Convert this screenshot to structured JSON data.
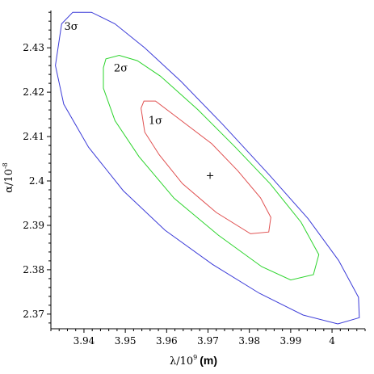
{
  "chart_data": {
    "type": "contour",
    "xlabel_symbol": "λ/10",
    "xlabel_exponent": "9",
    "xlabel_unit": "(m)",
    "ylabel_symbol": "α/10",
    "ylabel_exponent": "-8",
    "xlim": [
      3.932,
      4.008
    ],
    "ylim": [
      2.3667,
      2.4384
    ],
    "xticks": [
      3.94,
      3.95,
      3.96,
      3.97,
      3.98,
      3.99,
      4.0
    ],
    "xtick_labels": [
      "3.94",
      "3.95",
      "3.96",
      "3.97",
      "3.98",
      "3.99",
      "4"
    ],
    "yticks": [
      2.37,
      2.38,
      2.39,
      2.4,
      2.41,
      2.42,
      2.43
    ],
    "ytick_labels": [
      "2.37",
      "2.38",
      "2.39",
      "2.4",
      "2.41",
      "2.42",
      "2.43"
    ],
    "best_fit": {
      "x": 3.9705,
      "y": 2.4012,
      "marker": "+"
    },
    "contours": [
      {
        "label": "1σ",
        "color": "#e05050",
        "label_at": {
          "x": 3.9573,
          "y": 2.4128
        },
        "points": [
          [
            3.9538,
            2.4164
          ],
          [
            3.9545,
            2.418
          ],
          [
            3.9573,
            2.418
          ],
          [
            3.9627,
            2.4142
          ],
          [
            3.9709,
            2.4084
          ],
          [
            3.9772,
            2.4023
          ],
          [
            3.9827,
            2.3962
          ],
          [
            3.9852,
            2.3918
          ],
          [
            3.9847,
            2.3885
          ],
          [
            3.9803,
            2.3881
          ],
          [
            3.972,
            2.3929
          ],
          [
            3.9638,
            2.3994
          ],
          [
            3.9582,
            2.4059
          ],
          [
            3.9547,
            2.411
          ]
        ]
      },
      {
        "label": "2σ",
        "color": "#2bd42b",
        "label_at": {
          "x": 3.9489,
          "y": 2.4247
        },
        "points": [
          [
            3.9447,
            2.4255
          ],
          [
            3.9453,
            2.4275
          ],
          [
            3.9485,
            2.4283
          ],
          [
            3.9529,
            2.4271
          ],
          [
            3.9585,
            2.4236
          ],
          [
            3.9675,
            2.4161
          ],
          [
            3.9766,
            2.4076
          ],
          [
            3.985,
            2.3994
          ],
          [
            3.9925,
            2.3907
          ],
          [
            3.9968,
            2.3834
          ],
          [
            3.9955,
            2.3789
          ],
          [
            3.99,
            2.3777
          ],
          [
            3.983,
            2.3807
          ],
          [
            3.9725,
            2.3878
          ],
          [
            3.9618,
            2.3961
          ],
          [
            3.9533,
            2.4055
          ],
          [
            3.9475,
            2.4136
          ],
          [
            3.9447,
            2.4209
          ]
        ]
      },
      {
        "label": "3σ",
        "color": "#3b3bd8",
        "label_at": {
          "x": 3.9369,
          "y": 2.434
        },
        "points": [
          [
            3.9346,
            2.4354
          ],
          [
            3.9373,
            2.438
          ],
          [
            3.9418,
            2.438
          ],
          [
            3.9475,
            2.4354
          ],
          [
            3.9547,
            2.43
          ],
          [
            3.9634,
            2.4225
          ],
          [
            3.9735,
            2.4128
          ],
          [
            3.9847,
            2.4015
          ],
          [
            3.9942,
            2.3915
          ],
          [
            4.0016,
            2.3821
          ],
          [
            4.0064,
            2.3738
          ],
          [
            4.0066,
            2.3692
          ],
          [
            4.0014,
            2.3678
          ],
          [
            3.993,
            2.3698
          ],
          [
            3.9824,
            2.3747
          ],
          [
            3.9711,
            2.3812
          ],
          [
            3.9596,
            2.3889
          ],
          [
            3.9495,
            2.3978
          ],
          [
            3.9411,
            2.4076
          ],
          [
            3.9351,
            2.4173
          ],
          [
            3.9331,
            2.426
          ]
        ]
      }
    ]
  }
}
